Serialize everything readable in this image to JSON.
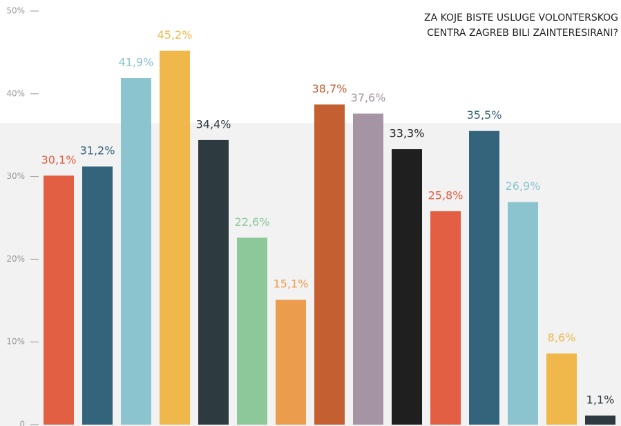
{
  "chart_data": {
    "type": "bar",
    "title": [
      "ZA KOJE BISTE USLUGE VOLONTERSKOG",
      "CENTRA ZAGREB BILI ZAINTERESIRANI?"
    ],
    "categories": [
      null,
      null,
      null,
      null,
      null,
      null,
      null,
      null,
      null,
      null,
      null,
      null,
      null,
      null,
      null
    ],
    "values": [
      30.1,
      31.2,
      41.9,
      45.2,
      34.4,
      22.6,
      15.1,
      38.7,
      37.6,
      33.3,
      25.8,
      35.5,
      26.9,
      8.6,
      1.1
    ],
    "value_labels": [
      "30,1%",
      "31,2%",
      "41,9%",
      "45,2%",
      "34,4%",
      "22,6%",
      "15,1%",
      "38,7%",
      "37,6%",
      "33,3%",
      "25,8%",
      "35,5%",
      "26,9%",
      "8,6%",
      "1,1%"
    ],
    "colors": [
      "#e25f43",
      "#34647c",
      "#8bc3cf",
      "#f0b84a",
      "#2d3a40",
      "#8dc898",
      "#eb9d4d",
      "#c45f31",
      "#a594a3",
      "#1f1f1f",
      "#e25f43",
      "#34647c",
      "#8bc3cf",
      "#f0b84a",
      "#2d3a40"
    ],
    "ylim": [
      0,
      50
    ],
    "yticks": [
      0,
      {
        "value": 10,
        "label": "10%"
      },
      {
        "value": 20,
        "label": "20%"
      },
      {
        "value": 30,
        "label": "30%"
      },
      {
        "value": 40,
        "label": "40%"
      },
      {
        "value": 50,
        "label": "50%"
      }
    ]
  }
}
